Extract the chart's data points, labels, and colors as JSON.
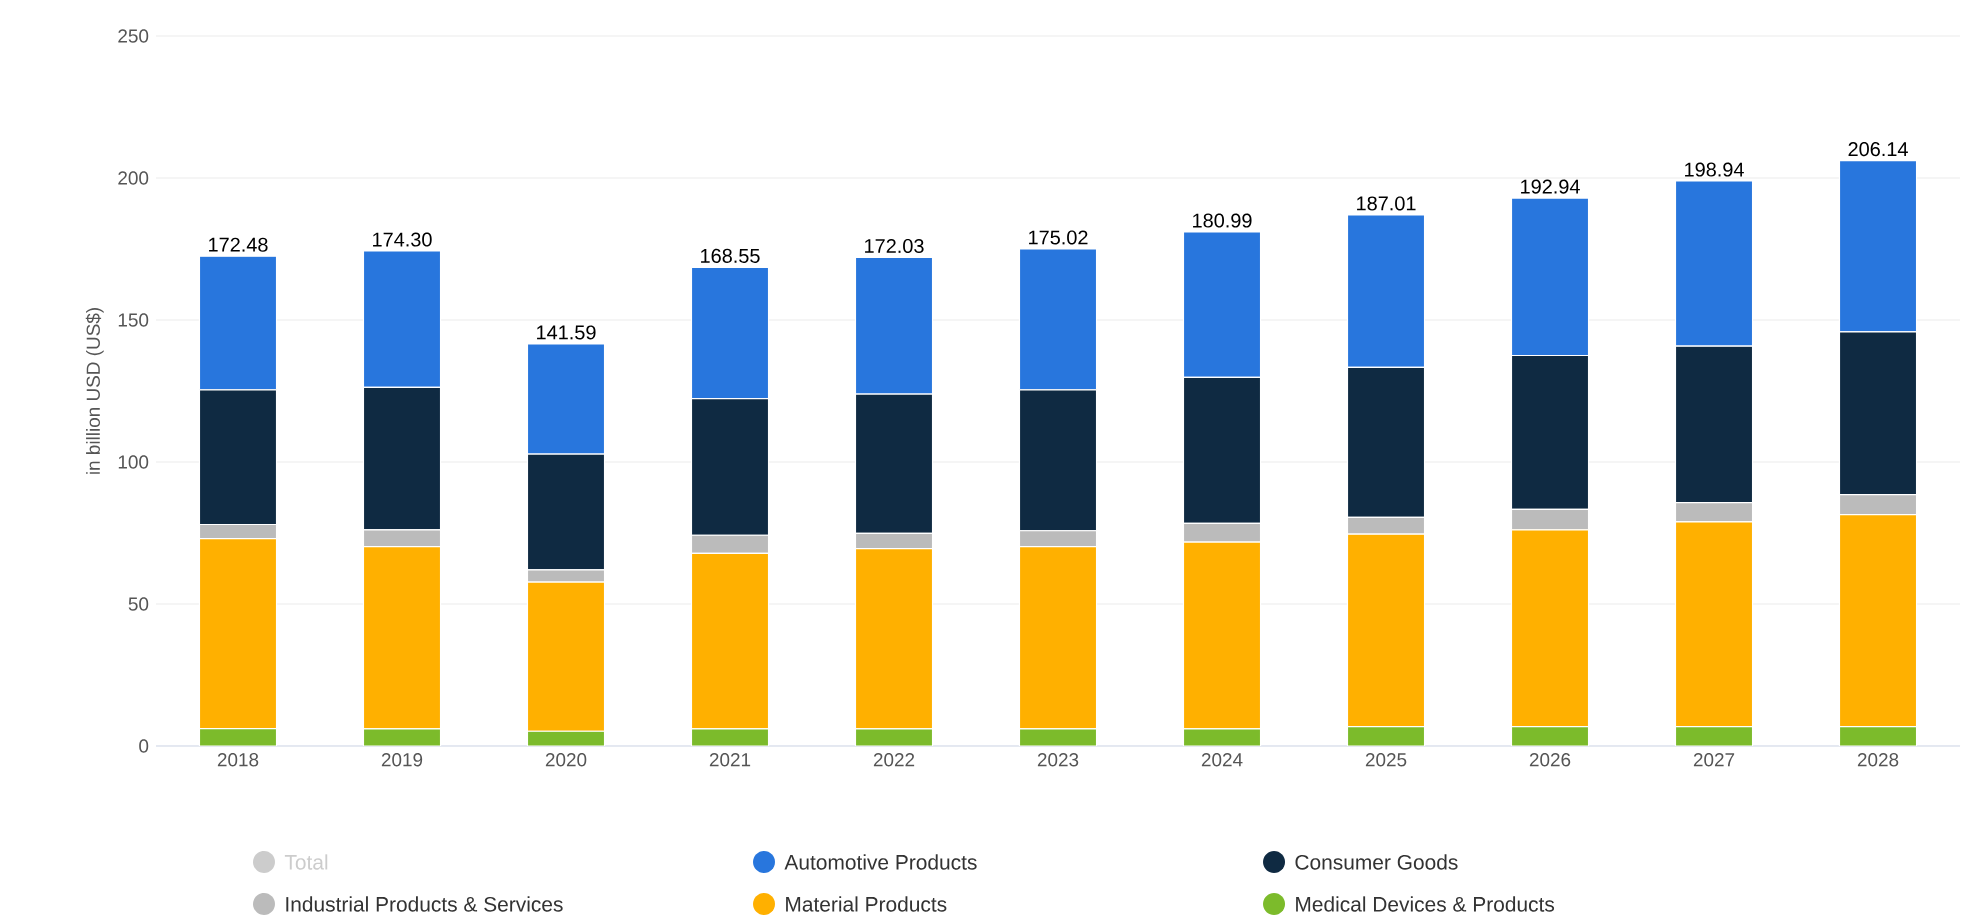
{
  "chart_data": {
    "type": "bar",
    "stacked": true,
    "ylabel": "in billion USD (US$)",
    "categories": [
      "2018",
      "2019",
      "2020",
      "2021",
      "2022",
      "2023",
      "2024",
      "2025",
      "2026",
      "2027",
      "2028"
    ],
    "series": [
      {
        "name": "Medical Devices & Products",
        "color": "#7cbb2b",
        "values": [
          6.1,
          6.0,
          5.2,
          6.0,
          6.0,
          6.0,
          6.0,
          6.8,
          6.8,
          6.8,
          6.8
        ]
      },
      {
        "name": "Material Products",
        "color": "#ffb000",
        "values": [
          66.9,
          64.2,
          52.5,
          61.8,
          63.5,
          64.2,
          65.8,
          67.8,
          69.3,
          72.1,
          74.7
        ]
      },
      {
        "name": "Industrial Products & Services",
        "color": "#bbbbbb",
        "values": [
          5.0,
          5.9,
          4.3,
          6.4,
          5.4,
          5.6,
          6.6,
          5.9,
          7.2,
          6.8,
          7.0
        ]
      },
      {
        "name": "Consumer Goods",
        "color": "#0f2a42",
        "values": [
          47.4,
          50.2,
          40.8,
          48.1,
          49.0,
          49.6,
          51.4,
          52.8,
          54.2,
          55.1,
          57.3
        ]
      },
      {
        "name": "Automotive Products",
        "color": "#2876dd",
        "values": [
          47.08,
          48.0,
          38.79,
          46.25,
          48.13,
          49.62,
          51.19,
          53.71,
          55.44,
          58.14,
          60.34
        ]
      },
      {
        "name": "Total",
        "color": "#cccccc",
        "values": [
          null,
          null,
          null,
          null,
          null,
          null,
          null,
          null,
          null,
          null,
          null
        ]
      }
    ],
    "totals": [
      "172.48",
      "174.30",
      "141.59",
      "168.55",
      "172.03",
      "175.02",
      "180.99",
      "187.01",
      "192.94",
      "198.94",
      "206.14"
    ],
    "ylim": [
      0,
      250
    ],
    "yticks": [
      0,
      50,
      100,
      150,
      200,
      250
    ],
    "grid": "y",
    "legend": "bottom"
  }
}
